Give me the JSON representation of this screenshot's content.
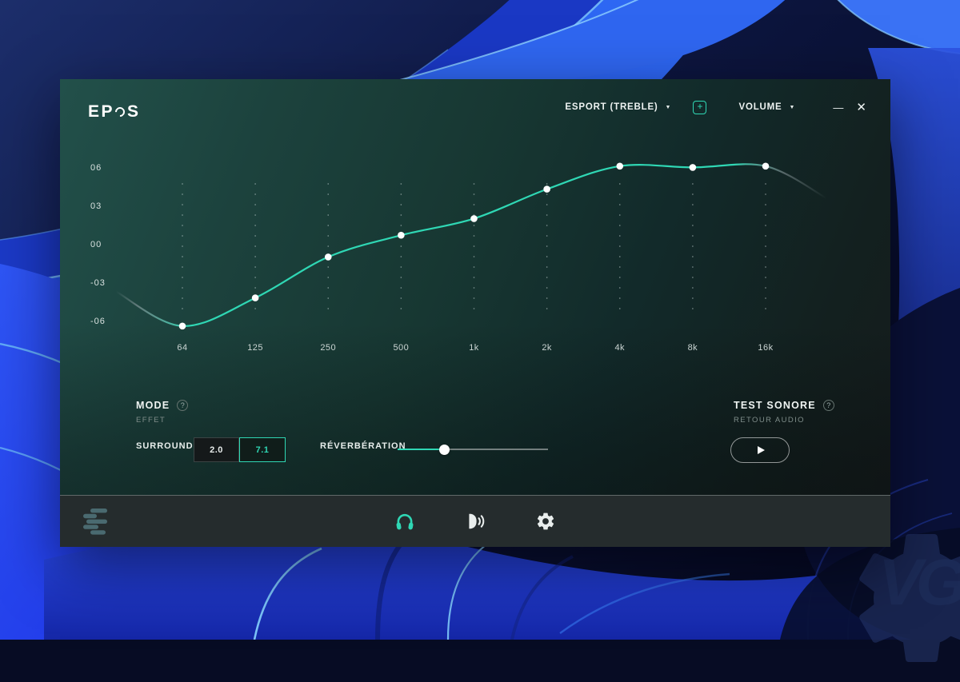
{
  "desktop": {
    "watermark_text": "VG"
  },
  "colors": {
    "accent_teal": "#2fd7b4",
    "curve_dot": "#ffffff",
    "wallpaper_blue": "#2a52f0",
    "window_top": "#22504a",
    "window_bottom": "#151b1c"
  },
  "window": {
    "brand": "EPOS",
    "brand_prefix": "EP",
    "brand_suffix": "S",
    "header": {
      "preset": {
        "label": "ESPORT (TREBLE)",
        "arrow": "▼"
      },
      "add_icon": "+",
      "volume": {
        "label": "VOLUME",
        "arrow": "▼"
      },
      "minimize_icon": "—",
      "close_icon": "✕"
    },
    "equalizer": {
      "type": "line",
      "categories": [
        "64",
        "125",
        "250",
        "500",
        "1k",
        "2k",
        "4k",
        "8k",
        "16k"
      ],
      "gains_db": [
        -6.3,
        -4.1,
        -0.9,
        0.8,
        2.1,
        4.4,
        6.2,
        6.1,
        6.2
      ],
      "y_labels": [
        "06",
        "03",
        "00",
        "-03",
        "-06"
      ],
      "y_values_db": [
        6,
        3,
        0,
        -3,
        -6
      ],
      "ylim": [
        -7.5,
        7.5
      ],
      "lead_in_db": -3.6,
      "lead_out_db": 3.7,
      "grid": "dotted-vertical"
    },
    "controls": {
      "mode": {
        "label": "MODE",
        "help_icon": "?",
        "sublabel": "EFFET"
      },
      "surround": {
        "label": "SURROUND",
        "options": [
          {
            "label": "2.0",
            "selected": false
          },
          {
            "label": "7.1",
            "selected": true
          }
        ]
      },
      "reverb": {
        "label": "RÉVERBÉRATION",
        "value_pct": 31
      },
      "sound_test": {
        "label": "TEST SONORE",
        "help_icon": "?",
        "sublabel": "RETOUR AUDIO"
      }
    },
    "nav": {
      "items": [
        {
          "name": "headphones",
          "active": true
        },
        {
          "name": "speaker-sidetone",
          "active": false
        },
        {
          "name": "settings",
          "active": false
        }
      ]
    }
  }
}
